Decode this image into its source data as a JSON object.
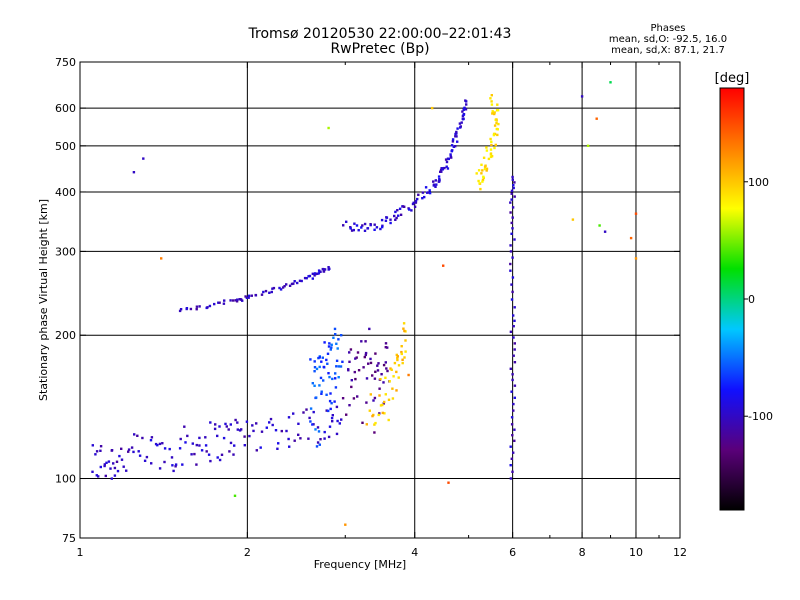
{
  "header": {
    "title": "Tromsø 20120530 22:00:00–22:01:43",
    "subtitle": "RwPretec (Bp)"
  },
  "phases": {
    "heading": "Phases",
    "line_o": "mean, sd,O: -92.5, 16.0",
    "line_x": "mean, sd,X: 87.1, 21.7"
  },
  "chart_data": {
    "type": "scatter",
    "xlabel": "Frequency [MHz]",
    "ylabel": "Stationary phase Virtual Height [km]",
    "x_scale": "log",
    "y_scale": "log",
    "xlim": [
      1,
      12
    ],
    "ylim": [
      75,
      750
    ],
    "x_ticks": [
      1,
      2,
      4,
      6,
      8,
      10,
      12
    ],
    "x_tick_labels": [
      "1",
      "2",
      "4",
      "6",
      "8",
      "10",
      "12"
    ],
    "x_minor_ticks": [
      3,
      5,
      7,
      9,
      11
    ],
    "x_grid": [
      2,
      4,
      6,
      8,
      10
    ],
    "y_ticks": [
      75,
      100,
      200,
      300,
      400,
      500,
      600,
      750
    ],
    "y_tick_labels": [
      "75",
      "100",
      "200",
      "300",
      "400",
      "500",
      "600",
      "750"
    ],
    "y_grid": [
      100,
      200,
      300,
      400,
      500,
      600
    ],
    "grid": true,
    "colorbar": {
      "label": "[deg]",
      "range": [
        -180,
        180
      ],
      "ticks": [
        100,
        0,
        -100
      ],
      "tick_labels": [
        "100",
        "0",
        "-100"
      ],
      "stops": [
        "#000000",
        "#5a007a",
        "#1010ff",
        "#00c8ff",
        "#00e000",
        "#ffff00",
        "#ff8000",
        "#ff0000"
      ]
    },
    "traces": [
      {
        "segment": "E-region echoes",
        "phase_deg": -100,
        "spread_km": 12,
        "points": [
          [
            1.05,
            108
          ],
          [
            1.1,
            109
          ],
          [
            1.15,
            110
          ],
          [
            1.2,
            111
          ],
          [
            1.3,
            113
          ],
          [
            1.4,
            114
          ],
          [
            1.5,
            116
          ],
          [
            1.6,
            118
          ],
          [
            1.7,
            120
          ],
          [
            1.8,
            121
          ],
          [
            1.9,
            123
          ],
          [
            2.0,
            125
          ],
          [
            2.2,
            126
          ],
          [
            2.4,
            128
          ],
          [
            2.6,
            130
          ],
          [
            2.8,
            132
          ],
          [
            2.95,
            133
          ]
        ]
      },
      {
        "segment": "lower F trace",
        "phase_deg": -100,
        "spread_km": 2,
        "points": [
          [
            1.5,
            225
          ],
          [
            1.7,
            230
          ],
          [
            1.9,
            237
          ],
          [
            2.0,
            240
          ],
          [
            2.2,
            248
          ],
          [
            2.4,
            256
          ],
          [
            2.6,
            265
          ],
          [
            2.7,
            272
          ],
          [
            2.8,
            278
          ]
        ]
      },
      {
        "segment": "spread band 2.6-2.9 MHz",
        "phase_deg": -60,
        "spread_km": 35,
        "points": [
          [
            2.6,
            140
          ],
          [
            2.65,
            165
          ],
          [
            2.7,
            150
          ],
          [
            2.75,
            175
          ],
          [
            2.8,
            160
          ],
          [
            2.85,
            185
          ],
          [
            2.9,
            170
          ],
          [
            2.95,
            200
          ]
        ]
      },
      {
        "segment": "spread band 3.0-3.6 MHz",
        "phase_deg": -120,
        "spread_km": 30,
        "points": [
          [
            3.0,
            150
          ],
          [
            3.1,
            170
          ],
          [
            3.2,
            160
          ],
          [
            3.3,
            180
          ],
          [
            3.4,
            150
          ],
          [
            3.5,
            175
          ],
          [
            3.6,
            160
          ]
        ]
      },
      {
        "segment": "spread band 3.3-3.8 MHz",
        "phase_deg": 100,
        "spread_km": 20,
        "points": [
          [
            3.3,
            135
          ],
          [
            3.45,
            145
          ],
          [
            3.6,
            150
          ],
          [
            3.7,
            165
          ],
          [
            3.8,
            180
          ],
          [
            3.85,
            195
          ]
        ]
      },
      {
        "segment": "F2 ordinary trace",
        "phase_deg": -95,
        "spread_km": 8,
        "points": [
          [
            3.0,
            340
          ],
          [
            3.2,
            338
          ],
          [
            3.4,
            340
          ],
          [
            3.6,
            350
          ],
          [
            3.8,
            365
          ],
          [
            4.0,
            380
          ],
          [
            4.2,
            400
          ],
          [
            4.4,
            420
          ],
          [
            4.5,
            440
          ],
          [
            4.6,
            470
          ],
          [
            4.7,
            500
          ],
          [
            4.8,
            540
          ],
          [
            4.9,
            580
          ],
          [
            4.95,
            620
          ]
        ]
      },
      {
        "segment": "F2 extraordinary trace",
        "phase_deg": 90,
        "spread_km": 25,
        "points": [
          [
            5.2,
            420
          ],
          [
            5.3,
            440
          ],
          [
            5.4,
            470
          ],
          [
            5.5,
            500
          ],
          [
            5.6,
            540
          ],
          [
            5.6,
            580
          ],
          [
            5.5,
            620
          ]
        ]
      },
      {
        "segment": "vertical interference at 6 MHz",
        "phase_deg": -100,
        "spread_km": 0,
        "points": [
          [
            6.0,
            100
          ],
          [
            6.0,
            130
          ],
          [
            6.0,
            170
          ],
          [
            6.0,
            220
          ],
          [
            6.0,
            300
          ],
          [
            6.0,
            380
          ],
          [
            6.0,
            430
          ]
        ]
      }
    ],
    "isolated_points": [
      {
        "x": 1.3,
        "y": 470,
        "phase_deg": -100
      },
      {
        "x": 1.25,
        "y": 440,
        "phase_deg": -100
      },
      {
        "x": 1.4,
        "y": 290,
        "phase_deg": 130
      },
      {
        "x": 2.8,
        "y": 545,
        "phase_deg": 60
      },
      {
        "x": 1.9,
        "y": 92,
        "phase_deg": 40
      },
      {
        "x": 3.0,
        "y": 80,
        "phase_deg": 120
      },
      {
        "x": 4.6,
        "y": 98,
        "phase_deg": 150
      },
      {
        "x": 4.5,
        "y": 280,
        "phase_deg": 150
      },
      {
        "x": 7.7,
        "y": 350,
        "phase_deg": 100
      },
      {
        "x": 8.2,
        "y": 500,
        "phase_deg": 60
      },
      {
        "x": 8.5,
        "y": 570,
        "phase_deg": 140
      },
      {
        "x": 8.6,
        "y": 340,
        "phase_deg": 40
      },
      {
        "x": 8.8,
        "y": 330,
        "phase_deg": -100
      },
      {
        "x": 9.0,
        "y": 680,
        "phase_deg": 10
      },
      {
        "x": 9.8,
        "y": 320,
        "phase_deg": 140
      },
      {
        "x": 10.0,
        "y": 360,
        "phase_deg": 150
      },
      {
        "x": 10.0,
        "y": 290,
        "phase_deg": 120
      },
      {
        "x": 8.0,
        "y": 635,
        "phase_deg": -100
      },
      {
        "x": 4.3,
        "y": 600,
        "phase_deg": 100
      },
      {
        "x": 3.9,
        "y": 165,
        "phase_deg": 130
      }
    ]
  }
}
